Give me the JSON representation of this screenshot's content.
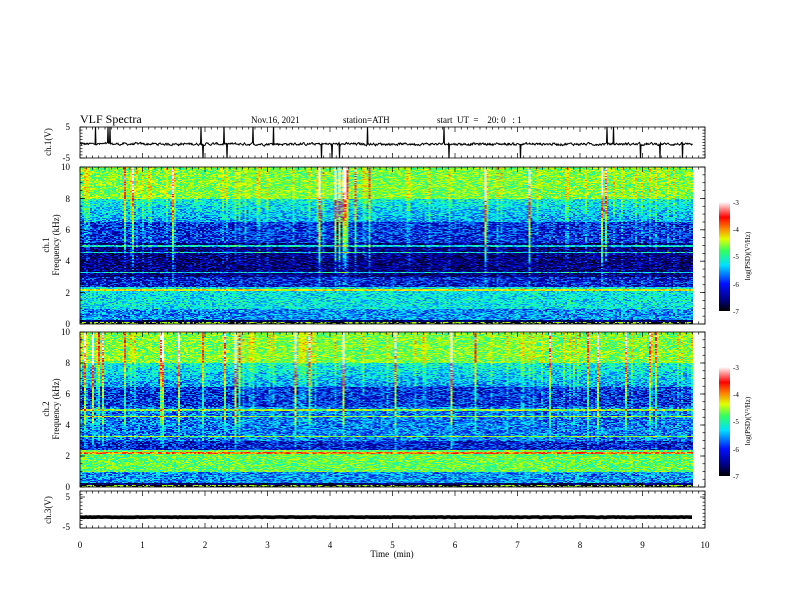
{
  "header": {
    "title": "VLF  Spectra",
    "date": "Nov.16, 2021",
    "station": "station=ATH",
    "start": "start  UT  =    20: 0   : 1"
  },
  "chart_data": [
    {
      "type": "line",
      "name": "ch1-waveform",
      "ylabel": "ch.1(V)",
      "ylim": [
        -5,
        5
      ],
      "yticks": [
        "5",
        "-5"
      ],
      "xlim": [
        0,
        10
      ],
      "trace_color": "#000000",
      "trend": "noisy waveform near -0.5 V with intermittent spikes reaching the axis limits"
    },
    {
      "type": "heatmap",
      "name": "ch1-spectrogram",
      "ylabel": "ch.1\nFrequency  (kHz)",
      "ylabel_lines": [
        "ch.1",
        "Frequency  (kHz)"
      ],
      "ylim": [
        0,
        10
      ],
      "yticks": [
        "0",
        "2",
        "4",
        "6",
        "8",
        "10"
      ],
      "xlim": [
        0,
        9.8
      ],
      "colorbar": {
        "label": "log(PSD)(V²/Hz)",
        "range": [
          -7,
          -3
        ],
        "ticks": [
          "-3",
          "-4",
          "-5",
          "-6",
          "-7"
        ]
      }
    },
    {
      "type": "heatmap",
      "name": "ch2-spectrogram",
      "ylabel": "ch.2\nFrequency  (kHz)",
      "ylabel_lines": [
        "ch.2",
        "Frequency  (kHz)"
      ],
      "ylim": [
        0,
        10
      ],
      "yticks": [
        "0",
        "2",
        "4",
        "6",
        "8",
        "10"
      ],
      "xlim": [
        0,
        9.8
      ],
      "colorbar": {
        "label": "log(PSD)(V²/Hz)",
        "range": [
          -7,
          -3
        ],
        "ticks": [
          "-3",
          "-4",
          "-5",
          "-6",
          "-7"
        ]
      }
    },
    {
      "type": "line",
      "name": "ch3-waveform",
      "ylabel": "ch.3(V)",
      "ylim": [
        -5,
        5
      ],
      "yticks": [
        "5",
        "-5"
      ],
      "xlim": [
        0,
        10
      ],
      "trace_color": "#000000",
      "trend": "flat thick trace near -1.5 V",
      "xlabel": "Time  (min)",
      "xticks": [
        "0",
        "1",
        "2",
        "3",
        "4",
        "5",
        "6",
        "7",
        "8",
        "9",
        "10"
      ]
    }
  ],
  "colormap": [
    "#000000",
    "#000060",
    "#0000c8",
    "#0070ff",
    "#00e8ff",
    "#20ff90",
    "#a0ff00",
    "#ffff00",
    "#ff8000",
    "#ff0000",
    "#ff9090",
    "#ffffff"
  ]
}
